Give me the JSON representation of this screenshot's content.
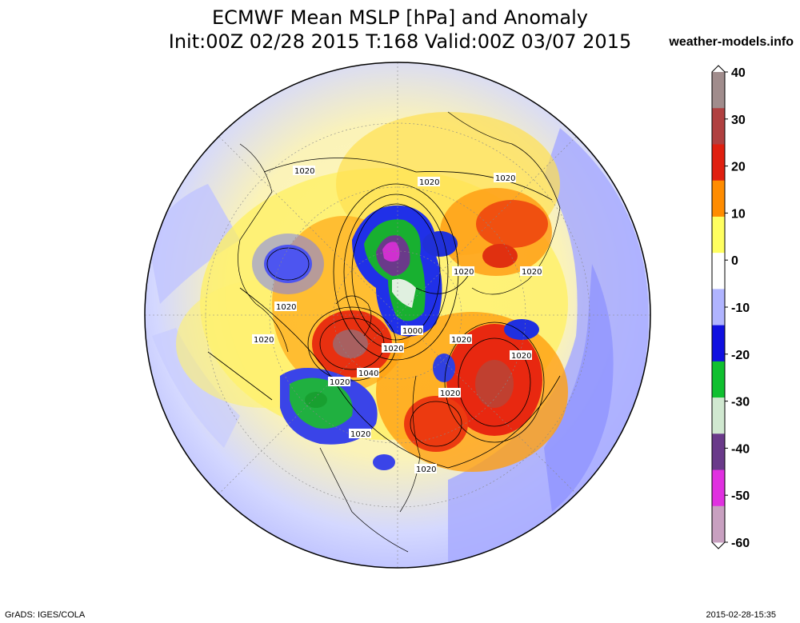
{
  "header": {
    "title_line1": "ECMWF Mean MSLP [hPa] and Anomaly",
    "title_line2": "Init:00Z 02/28 2015 T:168 Valid:00Z 03/07 2015",
    "site": "weather-models.info"
  },
  "footer": {
    "credit": "GrADS: IGES/COLA",
    "timestamp": "2015-02-28-15:35"
  },
  "colorbar": {
    "labels": [
      "40",
      "30",
      "20",
      "10",
      "0",
      "-10",
      "-20",
      "-30",
      "-40",
      "-50",
      "-60"
    ],
    "colors": [
      "#a08c8c",
      "#b04040",
      "#e02010",
      "#ff8c00",
      "#ffff60",
      "#ffffff",
      "#b0b4ff",
      "#1010e0",
      "#10c030",
      "#d0e8d0",
      "#6a3a8a",
      "#e030e0",
      "#c8a0c0"
    ]
  },
  "map": {
    "isobar_labels": [
      "1020",
      "1020",
      "1020",
      "1020",
      "1020",
      "1020",
      "1020",
      "1000",
      "1020",
      "1020",
      "1040",
      "1020",
      "1020",
      "1020",
      "1020",
      "1020"
    ]
  }
}
